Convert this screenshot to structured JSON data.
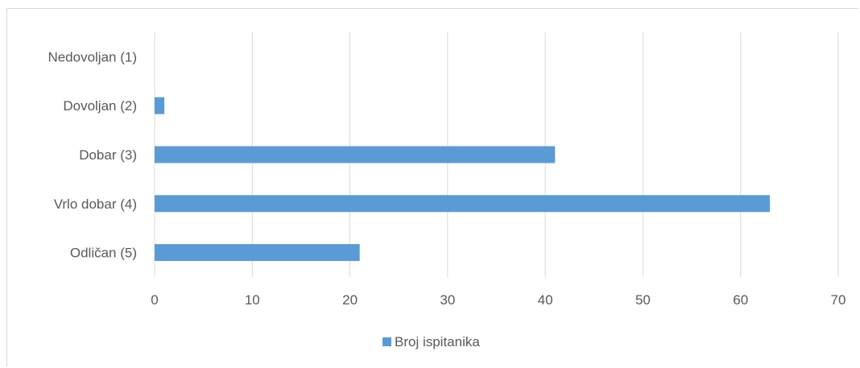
{
  "chart_data": {
    "type": "bar",
    "orientation": "horizontal",
    "categories": [
      "Nedovoljan (1)",
      "Dovoljan (2)",
      "Dobar (3)",
      "Vrlo dobar (4)",
      "Odličan (5)"
    ],
    "series": [
      {
        "name": "Broj ispitanika",
        "values": [
          0,
          1,
          41,
          63,
          21
        ],
        "color": "#5b9bd5"
      }
    ],
    "x_ticks": [
      "0",
      "10",
      "20",
      "30",
      "40",
      "50",
      "60",
      "70"
    ],
    "xlim": [
      0,
      70
    ],
    "grid": "vertical",
    "legend_position": "bottom"
  }
}
